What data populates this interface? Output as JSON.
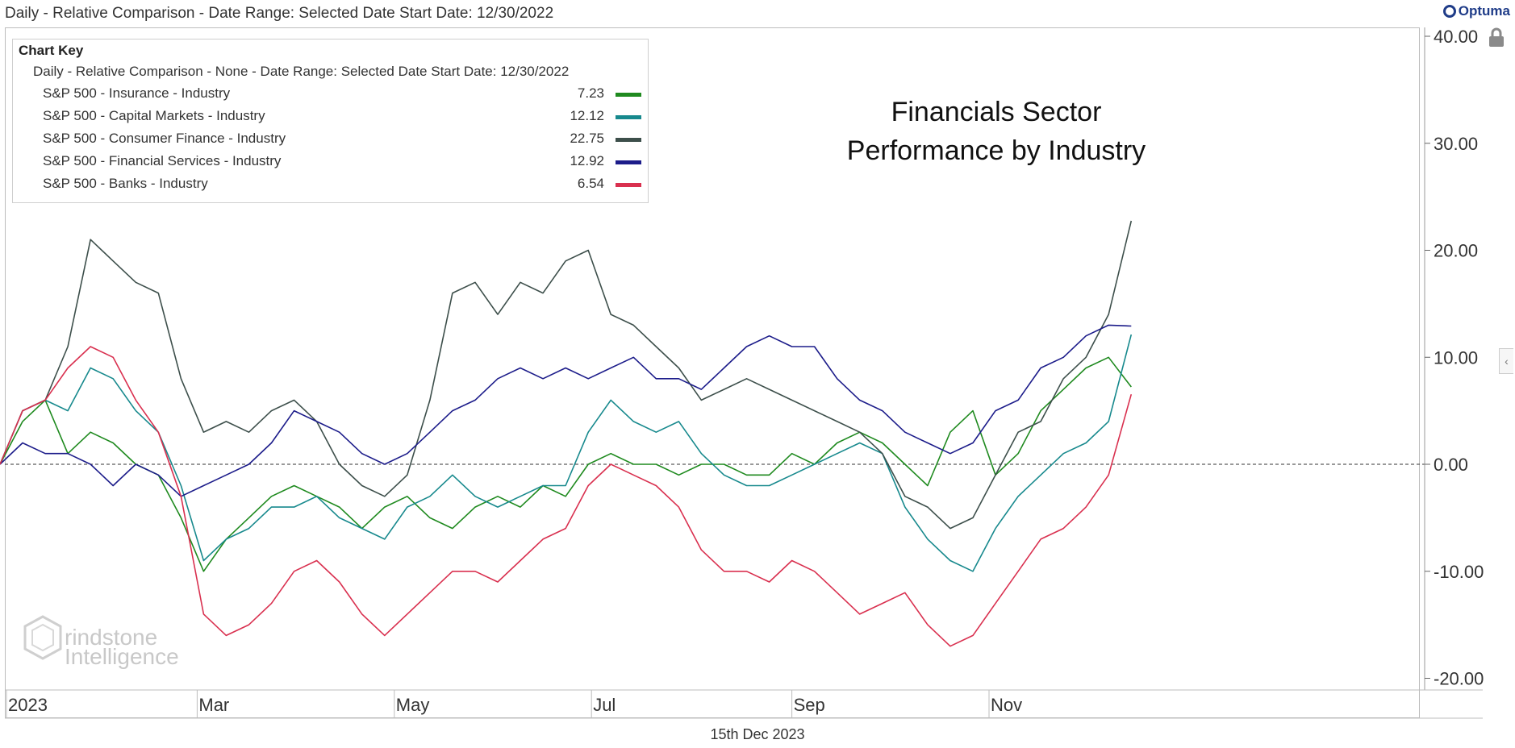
{
  "header": {
    "title": "Daily - Relative Comparison - Date Range: Selected Date  Start Date: 12/30/2022",
    "brand": "Optuma"
  },
  "legend": {
    "title": "Chart Key",
    "subtitle": "Daily - Relative Comparison - None - Date Range: Selected Date  Start Date: 12/30/2022"
  },
  "annotation": {
    "line1": "Financials Sector",
    "line2": "Performance by Industry"
  },
  "footer": {
    "date": "15th Dec 2023"
  },
  "watermark": {
    "line1": "rindstone",
    "line2": "Intelligence"
  },
  "icons": {
    "lock": "lock-icon",
    "collapse": "chevron-left-icon",
    "brand": "optuma-logo-icon"
  },
  "chart_data": {
    "type": "line",
    "xlabel": "",
    "ylabel": "",
    "ylim": [
      -20,
      40
    ],
    "yticks": [
      "40.00",
      "30.00",
      "20.00",
      "10.00",
      "0.00",
      "-10.00",
      "-20.00"
    ],
    "xticks": [
      "2023",
      "Mar",
      "May",
      "Jul",
      "Sep",
      "Nov"
    ],
    "reference_line": 0,
    "x": [
      "2022-12-30",
      "2023-01-06",
      "2023-01-13",
      "2023-01-20",
      "2023-01-27",
      "2023-02-03",
      "2023-02-10",
      "2023-02-17",
      "2023-02-24",
      "2023-03-03",
      "2023-03-10",
      "2023-03-17",
      "2023-03-24",
      "2023-03-31",
      "2023-04-07",
      "2023-04-14",
      "2023-04-21",
      "2023-04-28",
      "2023-05-05",
      "2023-05-12",
      "2023-05-19",
      "2023-05-26",
      "2023-06-02",
      "2023-06-09",
      "2023-06-16",
      "2023-06-23",
      "2023-06-30",
      "2023-07-07",
      "2023-07-14",
      "2023-07-21",
      "2023-07-28",
      "2023-08-04",
      "2023-08-11",
      "2023-08-18",
      "2023-08-25",
      "2023-09-01",
      "2023-09-08",
      "2023-09-15",
      "2023-09-22",
      "2023-09-29",
      "2023-10-06",
      "2023-10-13",
      "2023-10-20",
      "2023-10-27",
      "2023-11-03",
      "2023-11-10",
      "2023-11-17",
      "2023-11-24",
      "2023-12-01",
      "2023-12-08",
      "2023-12-15"
    ],
    "series": [
      {
        "name": "S&P 500 - Insurance - Industry",
        "label": "7.23",
        "color": "#1f8a1f",
        "values": [
          0,
          4,
          6,
          1,
          3,
          2,
          0,
          -1,
          -5,
          -10,
          -7,
          -5,
          -3,
          -2,
          -3,
          -4,
          -6,
          -4,
          -3,
          -5,
          -6,
          -4,
          -3,
          -4,
          -2,
          -3,
          0,
          1,
          0,
          0,
          -1,
          0,
          0,
          -1,
          -1,
          1,
          0,
          2,
          3,
          2,
          0,
          -2,
          3,
          5,
          -1,
          1,
          5,
          7,
          9,
          10,
          7.23
        ]
      },
      {
        "name": "S&P 500 - Capital Markets - Industry",
        "label": "12.12",
        "color": "#17898d",
        "values": [
          0,
          5,
          6,
          5,
          9,
          8,
          5,
          3,
          -2,
          -9,
          -7,
          -6,
          -4,
          -4,
          -3,
          -5,
          -6,
          -7,
          -4,
          -3,
          -1,
          -3,
          -4,
          -3,
          -2,
          -2,
          3,
          6,
          4,
          3,
          4,
          1,
          -1,
          -2,
          -2,
          -1,
          0,
          1,
          2,
          1,
          -4,
          -7,
          -9,
          -10,
          -6,
          -3,
          -1,
          1,
          2,
          4,
          12.12
        ]
      },
      {
        "name": "S&P 500 - Consumer Finance - Industry",
        "label": "22.75",
        "color": "#3d4f4b",
        "values": [
          0,
          5,
          6,
          11,
          21,
          19,
          17,
          16,
          8,
          3,
          4,
          3,
          5,
          6,
          4,
          0,
          -2,
          -3,
          -1,
          6,
          16,
          17,
          14,
          17,
          16,
          19,
          20,
          14,
          13,
          11,
          9,
          6,
          7,
          8,
          7,
          6,
          5,
          4,
          3,
          1,
          -3,
          -4,
          -6,
          -5,
          -1,
          3,
          4,
          8,
          10,
          14,
          22.75
        ]
      },
      {
        "name": "S&P 500 - Financial Services - Industry",
        "label": "12.92",
        "color": "#1c1c8a",
        "values": [
          0,
          2,
          1,
          1,
          0,
          -2,
          0,
          -1,
          -3,
          -2,
          -1,
          0,
          2,
          5,
          4,
          3,
          1,
          0,
          1,
          3,
          5,
          6,
          8,
          9,
          8,
          9,
          8,
          9,
          10,
          8,
          8,
          7,
          9,
          11,
          12,
          11,
          11,
          8,
          6,
          5,
          3,
          2,
          1,
          2,
          5,
          6,
          9,
          10,
          12,
          13,
          12.92
        ]
      },
      {
        "name": "S&P 500 - Banks - Industry",
        "label": "6.54",
        "color": "#d9304f",
        "values": [
          0,
          5,
          6,
          9,
          11,
          10,
          6,
          3,
          -3,
          -14,
          -16,
          -15,
          -13,
          -10,
          -9,
          -11,
          -14,
          -16,
          -14,
          -12,
          -10,
          -10,
          -11,
          -9,
          -7,
          -6,
          -2,
          0,
          -1,
          -2,
          -4,
          -8,
          -10,
          -10,
          -11,
          -9,
          -10,
          -12,
          -14,
          -13,
          -12,
          -15,
          -17,
          -16,
          -13,
          -10,
          -7,
          -6,
          -4,
          -1,
          6.54
        ]
      }
    ]
  }
}
